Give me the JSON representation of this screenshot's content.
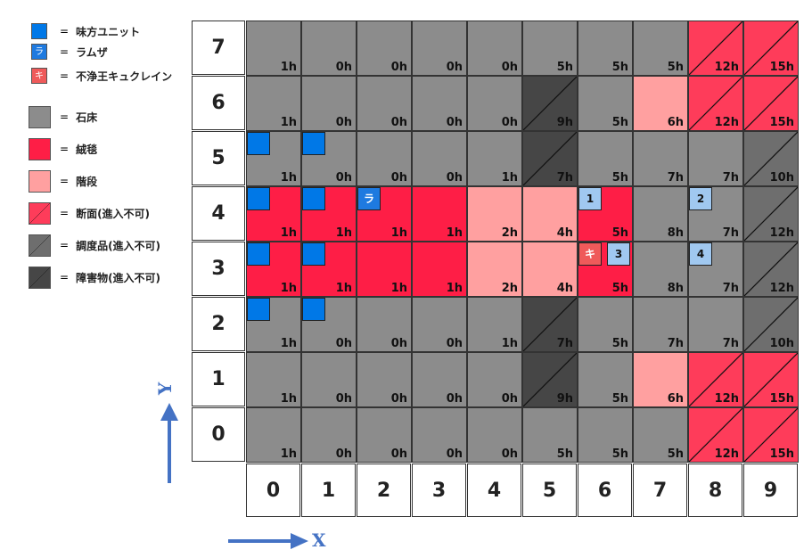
{
  "colors": {
    "ally": "#0078e7",
    "ramza": "#1e7ae0",
    "enemy": "#ef5a5a",
    "stone": "#8c8c8c",
    "carpet": "#fe1e46",
    "stairs": "#ffa0a0",
    "cut": "#fe3c5a",
    "furniture": "#6e6e6e",
    "obstacle": "#464646",
    "numbered": "#a0c8f0"
  },
  "legend": [
    {
      "type": "ally",
      "label": "味方ユニット",
      "size": "small"
    },
    {
      "type": "ramza",
      "label": "ラムザ",
      "size": "small",
      "glyph": "ラ"
    },
    {
      "type": "enemy",
      "label": "不浄王キュクレイン",
      "size": "small",
      "glyph": "キ"
    },
    {
      "type": "stone",
      "label": "石床",
      "size": "big"
    },
    {
      "type": "carpet",
      "label": "絨毯",
      "size": "big"
    },
    {
      "type": "stairs",
      "label": "階段",
      "size": "big"
    },
    {
      "type": "cut",
      "label": "断面(進入不可)",
      "size": "big"
    },
    {
      "type": "furniture",
      "label": "調度品(進入不可)",
      "size": "big"
    },
    {
      "type": "obstacle",
      "label": "障害物(進入不可)",
      "size": "big"
    }
  ],
  "equals": "=",
  "rows": [
    "7",
    "6",
    "5",
    "4",
    "3",
    "2",
    "1",
    "0"
  ],
  "cols": [
    "0",
    "1",
    "2",
    "3",
    "4",
    "5",
    "6",
    "7",
    "8",
    "9"
  ],
  "grid": [
    [
      [
        "stone",
        "1h"
      ],
      [
        "stone",
        "0h"
      ],
      [
        "stone",
        "0h"
      ],
      [
        "stone",
        "0h"
      ],
      [
        "stone",
        "0h"
      ],
      [
        "stone",
        "5h"
      ],
      [
        "stone",
        "5h"
      ],
      [
        "stone",
        "5h"
      ],
      [
        "cut",
        "12h"
      ],
      [
        "cut",
        "15h"
      ]
    ],
    [
      [
        "stone",
        "1h"
      ],
      [
        "stone",
        "0h"
      ],
      [
        "stone",
        "0h"
      ],
      [
        "stone",
        "0h"
      ],
      [
        "stone",
        "0h"
      ],
      [
        "obstacle",
        "9h"
      ],
      [
        "stone",
        "5h"
      ],
      [
        "stairs",
        "6h"
      ],
      [
        "cut",
        "12h"
      ],
      [
        "cut",
        "15h"
      ]
    ],
    [
      [
        "stone",
        "1h"
      ],
      [
        "stone",
        "0h"
      ],
      [
        "stone",
        "0h"
      ],
      [
        "stone",
        "0h"
      ],
      [
        "stone",
        "1h"
      ],
      [
        "obstacle",
        "7h"
      ],
      [
        "stone",
        "5h"
      ],
      [
        "stone",
        "7h"
      ],
      [
        "stone",
        "7h"
      ],
      [
        "furniture",
        "10h"
      ]
    ],
    [
      [
        "carpet",
        "1h"
      ],
      [
        "carpet",
        "1h"
      ],
      [
        "carpet",
        "1h"
      ],
      [
        "carpet",
        "1h"
      ],
      [
        "stairs",
        "2h"
      ],
      [
        "stairs",
        "4h"
      ],
      [
        "carpet",
        "5h"
      ],
      [
        "stone",
        "8h"
      ],
      [
        "stone",
        "7h"
      ],
      [
        "furniture",
        "12h"
      ]
    ],
    [
      [
        "carpet",
        "1h"
      ],
      [
        "carpet",
        "1h"
      ],
      [
        "carpet",
        "1h"
      ],
      [
        "carpet",
        "1h"
      ],
      [
        "stairs",
        "2h"
      ],
      [
        "stairs",
        "4h"
      ],
      [
        "carpet",
        "5h"
      ],
      [
        "stone",
        "8h"
      ],
      [
        "stone",
        "7h"
      ],
      [
        "furniture",
        "12h"
      ]
    ],
    [
      [
        "stone",
        "1h"
      ],
      [
        "stone",
        "0h"
      ],
      [
        "stone",
        "0h"
      ],
      [
        "stone",
        "0h"
      ],
      [
        "stone",
        "1h"
      ],
      [
        "obstacle",
        "7h"
      ],
      [
        "stone",
        "5h"
      ],
      [
        "stone",
        "7h"
      ],
      [
        "stone",
        "7h"
      ],
      [
        "furniture",
        "10h"
      ]
    ],
    [
      [
        "stone",
        "1h"
      ],
      [
        "stone",
        "0h"
      ],
      [
        "stone",
        "0h"
      ],
      [
        "stone",
        "0h"
      ],
      [
        "stone",
        "0h"
      ],
      [
        "obstacle",
        "9h"
      ],
      [
        "stone",
        "5h"
      ],
      [
        "stairs",
        "6h"
      ],
      [
        "cut",
        "12h"
      ],
      [
        "cut",
        "15h"
      ]
    ],
    [
      [
        "stone",
        "1h"
      ],
      [
        "stone",
        "0h"
      ],
      [
        "stone",
        "0h"
      ],
      [
        "stone",
        "0h"
      ],
      [
        "stone",
        "0h"
      ],
      [
        "stone",
        "5h"
      ],
      [
        "stone",
        "5h"
      ],
      [
        "stone",
        "5h"
      ],
      [
        "cut",
        "12h"
      ],
      [
        "cut",
        "15h"
      ]
    ]
  ],
  "units": [
    {
      "type": "ally",
      "x": 0,
      "y": 5,
      "text": ""
    },
    {
      "type": "ally",
      "x": 1,
      "y": 5,
      "text": ""
    },
    {
      "type": "ally",
      "x": 0,
      "y": 4,
      "text": ""
    },
    {
      "type": "ally",
      "x": 1,
      "y": 4,
      "text": ""
    },
    {
      "type": "ramza",
      "x": 2,
      "y": 4,
      "text": "ラ"
    },
    {
      "type": "ally",
      "x": 0,
      "y": 3,
      "text": ""
    },
    {
      "type": "ally",
      "x": 1,
      "y": 3,
      "text": ""
    },
    {
      "type": "ally",
      "x": 0,
      "y": 2,
      "text": ""
    },
    {
      "type": "ally",
      "x": 1,
      "y": 2,
      "text": ""
    },
    {
      "type": "numbered",
      "x": 6,
      "y": 4,
      "text": "1"
    },
    {
      "type": "numbered",
      "x": 8,
      "y": 4,
      "text": "2"
    },
    {
      "type": "enemy",
      "x": 6,
      "y": 3,
      "text": "キ"
    },
    {
      "type": "numbered",
      "x": 6,
      "y": 3,
      "text": "3"
    },
    {
      "type": "numbered",
      "x": 8,
      "y": 3,
      "text": "4"
    }
  ],
  "axes": {
    "x": "X",
    "y": "Y"
  }
}
